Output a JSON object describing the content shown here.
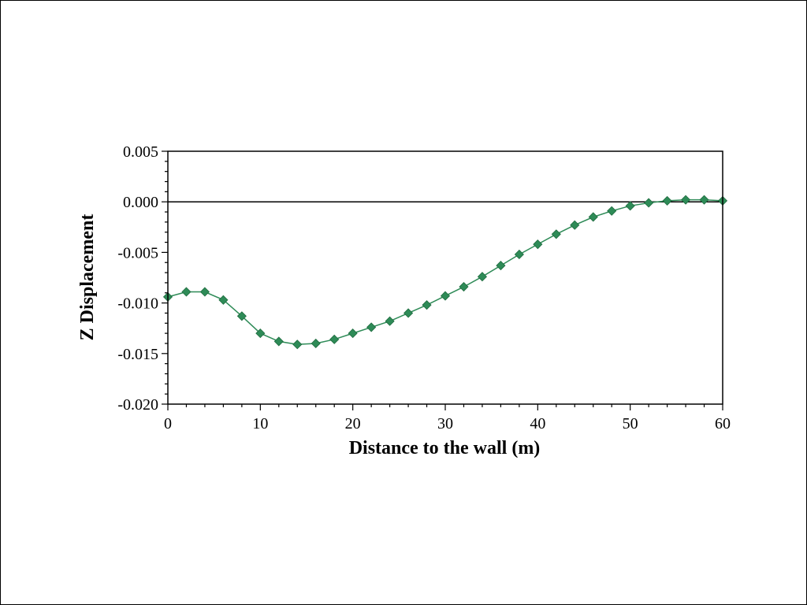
{
  "chart_data": {
    "type": "line",
    "title": "",
    "xlabel": "Distance to the wall (m)",
    "ylabel": "Z Displacement",
    "xlim": [
      0,
      60
    ],
    "ylim": [
      -0.02,
      0.005
    ],
    "x_ticks": [
      "0",
      "10",
      "20",
      "30",
      "40",
      "50",
      "60"
    ],
    "y_ticks": [
      "0.005",
      "0.000",
      "-0.005",
      "-0.010",
      "-0.015",
      "-0.020"
    ],
    "grid": false,
    "zero_line": true,
    "marker": "diamond",
    "colors": {
      "series": "#2e8b57",
      "axis": "#000000"
    },
    "series": [
      {
        "x": [
          0,
          2,
          4,
          6,
          8,
          10,
          12,
          14,
          16,
          18,
          20,
          22,
          24,
          26,
          28,
          30,
          32,
          34,
          36,
          38,
          40,
          42,
          44,
          46,
          48,
          50,
          52,
          54,
          56,
          58,
          60
        ],
        "y": [
          -0.0094,
          -0.0089,
          -0.0089,
          -0.0097,
          -0.0113,
          -0.013,
          -0.0138,
          -0.0141,
          -0.014,
          -0.0136,
          -0.013,
          -0.0124,
          -0.0118,
          -0.011,
          -0.0102,
          -0.0093,
          -0.0084,
          -0.0074,
          -0.0063,
          -0.0052,
          -0.0042,
          -0.0032,
          -0.0023,
          -0.0015,
          -0.0009,
          -0.0004,
          -0.0001,
          0.0001,
          0.0002,
          0.0002,
          0.0001
        ]
      }
    ]
  }
}
